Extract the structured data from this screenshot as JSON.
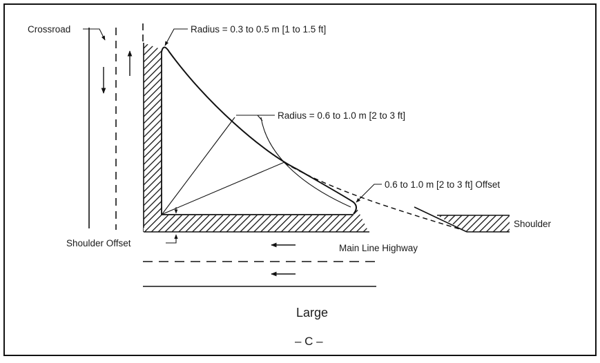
{
  "labels": {
    "crossroad": "Crossroad",
    "radius_small": "Radius = 0.3 to 0.5 m [1 to 1.5 ft]",
    "radius_large": "Radius = 0.6 to 1.0 m [2 to 3 ft]",
    "offset": "0.6 to 1.0 m [2 to 3 ft] Offset",
    "shoulder": "Shoulder",
    "shoulder_offset": "Shoulder Offset",
    "main_line": "Main Line Highway"
  },
  "caption": {
    "size": "Large",
    "letter": "– C –"
  }
}
